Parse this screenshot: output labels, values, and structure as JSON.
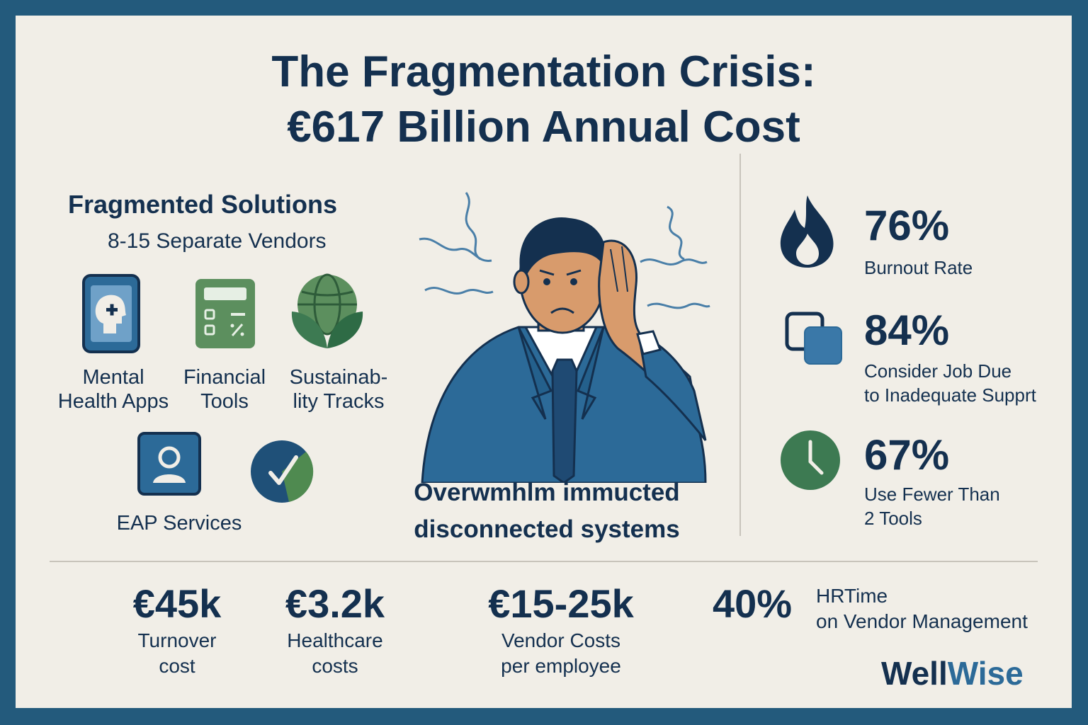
{
  "title": {
    "line1": "The Fragmentation Crisis:",
    "line2": "€617 Billion Annual Cost"
  },
  "left": {
    "heading": "Fragmented Solutions",
    "subheading": "8-15 Separate Vendors",
    "items": [
      {
        "label": "Mental Health Apps",
        "icon": "mental-health-phone-icon",
        "color": "#2c6a98"
      },
      {
        "label": "Financial Tools",
        "icon": "calculator-icon",
        "color": "#5c8f5e"
      },
      {
        "label": "Sustainab-lity Tracks",
        "icon": "globe-leaf-icon",
        "color": "#3d7a52"
      },
      {
        "label": "EAP Services",
        "icon": "person-icon",
        "color": "#2c6a98"
      },
      {
        "label": "",
        "icon": "check-pie-icon",
        "color": "#1f5078"
      }
    ],
    "label_lines": [
      [
        "Mental",
        "Health Apps"
      ],
      [
        "Financial",
        "Tools"
      ],
      [
        "Sustainab-",
        "lity Tracks"
      ],
      [
        "EAP Services"
      ]
    ]
  },
  "center": {
    "illustration": "stressed-businessman-illustration",
    "caption_line1": "Overwmhlm immucted",
    "caption_line2": "disconnected systems"
  },
  "stats": [
    {
      "value": "76%",
      "label_lines": [
        "Burnout Rate"
      ],
      "icon": "flame-icon"
    },
    {
      "value": "84%",
      "label_lines": [
        "Consider Job Due",
        "to Inadequate Supprt"
      ],
      "icon": "overlapping-squares-icon"
    },
    {
      "value": "67%",
      "label_lines": [
        "Use Fewer Than",
        "2 Tools"
      ],
      "icon": "clock-icon"
    }
  ],
  "bottom": [
    {
      "value": "€45k",
      "label_lines": [
        "Turnover",
        "cost"
      ]
    },
    {
      "value": "€3.2k",
      "label_lines": [
        "Healthcare",
        "costs"
      ]
    },
    {
      "value": "€15-25k",
      "label_lines": [
        "Vendor Costs",
        "per employee"
      ]
    },
    {
      "value": "40%",
      "label_lines": [
        "HRTime",
        "on Vendor Management"
      ]
    }
  ],
  "brand": {
    "part1": "Well",
    "part2": "Wise"
  },
  "colors": {
    "navy": "#14304f",
    "blue": "#2c6a98",
    "green": "#5c8f5e",
    "frame": "#235a7c",
    "background": "#f1eee7"
  }
}
